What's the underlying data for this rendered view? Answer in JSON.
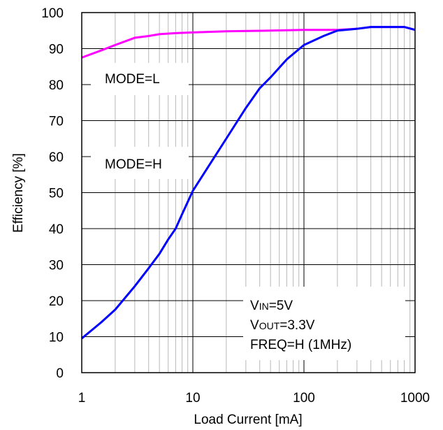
{
  "chart_data": {
    "type": "line",
    "title": "",
    "xlabel": "Load Current [mA]",
    "ylabel": "Efficiency [%]",
    "x_scale": "log",
    "xlim": [
      1,
      1000
    ],
    "ylim": [
      0,
      100
    ],
    "x_ticks": [
      "1",
      "10",
      "100",
      "1000"
    ],
    "y_ticks": [
      "0",
      "10",
      "20",
      "30",
      "40",
      "50",
      "60",
      "70",
      "80",
      "90",
      "100"
    ],
    "grid": true,
    "series": [
      {
        "name": "",
        "color": "#ff00ff",
        "x": [
          1,
          1.5,
          2,
          3,
          4,
          5,
          7,
          10,
          20,
          50,
          100,
          200,
          300,
          400,
          500,
          600,
          700,
          800,
          1000
        ],
        "y": [
          87.5,
          89.5,
          91,
          93,
          93.5,
          94,
          94.3,
          94.5,
          94.8,
          95,
          95.2,
          95.2,
          95.5,
          96,
          96,
          96,
          96,
          96,
          95.2
        ]
      },
      {
        "name": "",
        "color": "#0000ff",
        "x": [
          1,
          1.5,
          2,
          3,
          4,
          5,
          6,
          7,
          8,
          10,
          15,
          20,
          30,
          40,
          50,
          70,
          100,
          150,
          200,
          300,
          400,
          500,
          700,
          800,
          1000
        ],
        "y": [
          9.5,
          14,
          17.5,
          24,
          29,
          33,
          37,
          40,
          44,
          50.5,
          59,
          65,
          73.5,
          79,
          82,
          87,
          91,
          93.5,
          95,
          95.5,
          96,
          96,
          96,
          96,
          95.2
        ]
      }
    ],
    "annotations": {
      "mode_l": "MODE=L",
      "mode_h": "MODE=H",
      "cond_vin_main": "V",
      "cond_vin_sub": "IN",
      "cond_vin_val": "=5V",
      "cond_vout_main": "V",
      "cond_vout_sub": "OUT",
      "cond_vout_val": "=3.3V",
      "cond_freq": "FREQ=H (1MHz)"
    }
  }
}
